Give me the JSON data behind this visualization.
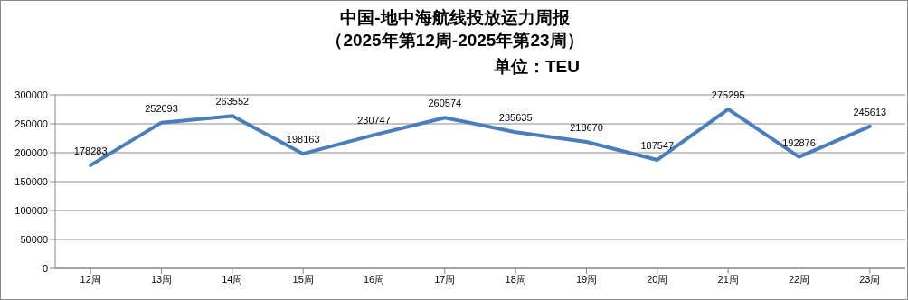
{
  "chart_data": {
    "type": "line",
    "title": "中国-地中海航线投放运力周报",
    "subtitle": "（2025年第12周-2025年第23周）",
    "annotations": [
      "单位：TEU"
    ],
    "categories": [
      "12周",
      "13周",
      "14周",
      "15周",
      "16周",
      "17周",
      "18周",
      "19周",
      "20周",
      "21周",
      "22周",
      "23周"
    ],
    "series": [
      {
        "color": "#4a7ebb",
        "values": [
          178283,
          252093,
          263552,
          198163,
          230747,
          260574,
          235635,
          218670,
          187547,
          275295,
          192876,
          245613
        ]
      }
    ],
    "ylim": [
      0,
      300000
    ],
    "yticks": [
      0,
      50000,
      100000,
      150000,
      200000,
      250000,
      300000
    ],
    "grid": "y",
    "legend": false,
    "marker": "none",
    "line_style": "solid",
    "data_labels": true
  }
}
